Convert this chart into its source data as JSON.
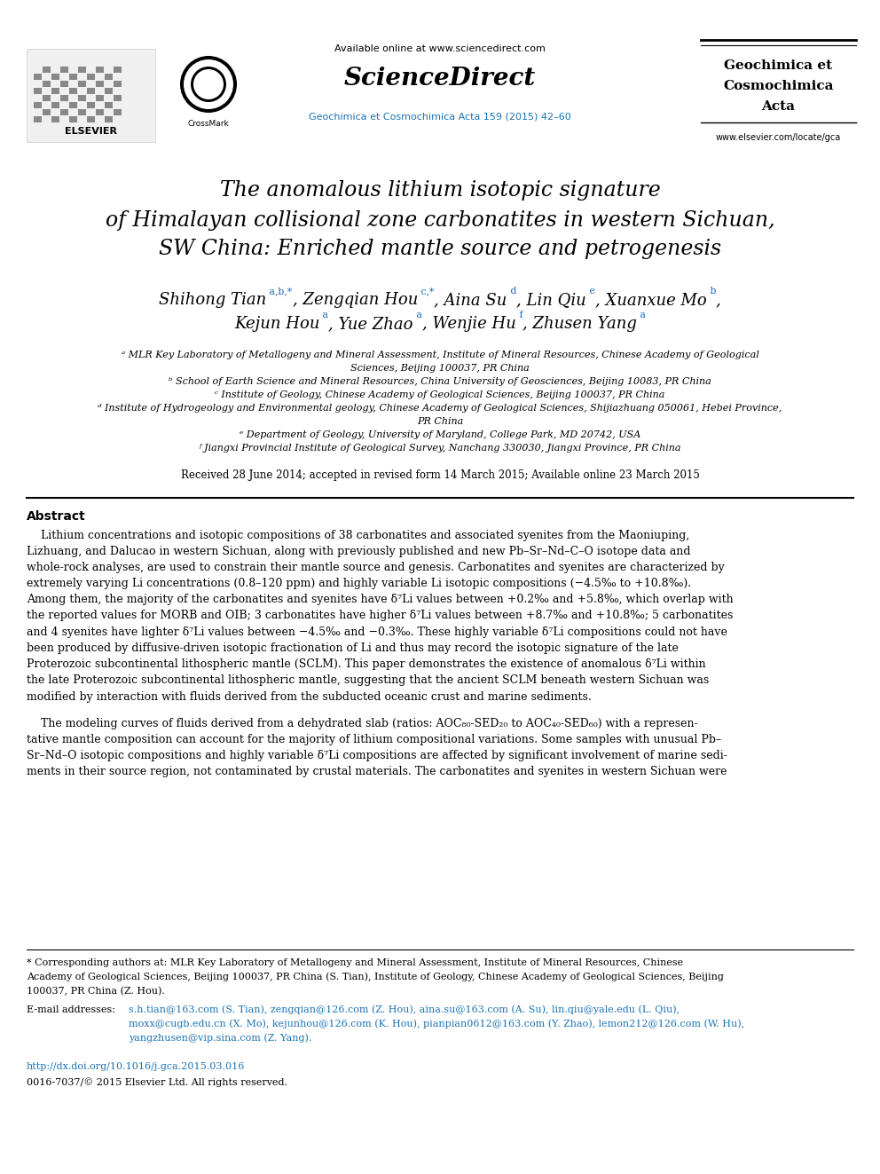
{
  "bg_color": "#ffffff",
  "page_width": 9.92,
  "page_height": 13.23,
  "header": {
    "available_online": "Available online at www.sciencedirect.com",
    "sciencedirect": "ScienceDirect",
    "journal_link": "Geochimica et Cosmochimica Acta 159 (2015) 42–60",
    "journal_name_line1": "Geochimica et",
    "journal_name_line2": "Cosmochimica",
    "journal_name_line3": "Acta",
    "website": "www.elsevier.com/locate/gca"
  },
  "title_line1": "The anomalous lithium isotopic signature",
  "title_line2": "of Himalayan collisional zone carbonatites in western Sichuan,",
  "title_line3": "SW China: Enriched mantle source and petrogenesis",
  "author_line1": "Shihong Tian",
  "author_line1_sups": "a,b,*",
  "author_seps1": ", Zengqian Hou",
  "author_seps1_sups": "c,*",
  "author_seps1b": ", Aina Su",
  "author_seps1b_sups": "d",
  "author_seps1c": ", Lin Qiu",
  "author_seps1c_sups": "e",
  "author_seps1d": ", Xuanxue Mo",
  "author_seps1d_sups": "b",
  "author_seps1e": ",",
  "author_line2a": "Kejun Hou",
  "author_line2a_sups": "a",
  "author_line2b": ", Yue Zhao",
  "author_line2b_sups": "a",
  "author_line2c": ", Wenjie Hu",
  "author_line2c_sups": "f",
  "author_line2d": ", Zhusen Yang",
  "author_line2d_sups": "a",
  "affiliations": [
    "a MLR Key Laboratory of Metallogeny and Mineral Assessment, Institute of Mineral Resources, Chinese Academy of Geological",
    "Sciences, Beijing 100037, PR China",
    "b School of Earth Science and Mineral Resources, China University of Geosciences, Beijing 10083, PR China",
    "c Institute of Geology, Chinese Academy of Geological Sciences, Beijing 100037, PR China",
    "d Institute of Hydrogeology and Environmental geology, Chinese Academy of Geological Sciences, Shijiazhuang 050061, Hebei Province,",
    "PR China",
    "e Department of Geology, University of Maryland, College Park, MD 20742, USA",
    "f Jiangxi Provincial Institute of Geological Survey, Nanchang 330030, Jiangxi Province, PR China"
  ],
  "received": "Received 28 June 2014; accepted in revised form 14 March 2015; Available online 23 March 2015",
  "abstract_title": "Abstract",
  "abstract_p1_lines": [
    "    Lithium concentrations and isotopic compositions of 38 carbonatites and associated syenites from the Maoniuping,",
    "Lizhuang, and Dalucao in western Sichuan, along with previously published and new Pb–Sr–Nd–C–O isotope data and",
    "whole-rock analyses, are used to constrain their mantle source and genesis. Carbonatites and syenites are characterized by",
    "extremely varying Li concentrations (0.8–120 ppm) and highly variable Li isotopic compositions (−4.5‰ to +10.8‰).",
    "Among them, the majority of the carbonatites and syenites have δ⁷Li values between +0.2‰ and +5.8‰, which overlap with",
    "the reported values for MORB and OIB; 3 carbonatites have higher δ⁷Li values between +8.7‰ and +10.8‰; 5 carbonatites",
    "and 4 syenites have lighter δ⁷Li values between −4.5‰ and −0.3‰. These highly variable δ⁷Li compositions could not have",
    "been produced by diffusive-driven isotopic fractionation of Li and thus may record the isotopic signature of the late",
    "Proterozoic subcontinental lithospheric mantle (SCLM). This paper demonstrates the existence of anomalous δ⁷Li within",
    "the late Proterozoic subcontinental lithospheric mantle, suggesting that the ancient SCLM beneath western Sichuan was",
    "modified by interaction with fluids derived from the subducted oceanic crust and marine sediments."
  ],
  "abstract_p2_lines": [
    "    The modeling curves of fluids derived from a dehydrated slab (ratios: AOC₈₀-SED₂₀ to AOC₄₀-SED₆₀) with a represen-",
    "tative mantle composition can account for the majority of lithium compositional variations. Some samples with unusual Pb–",
    "Sr–Nd–O isotopic compositions and highly variable δ⁷Li compositions are affected by significant involvement of marine sedi-",
    "ments in their source region, not contaminated by crustal materials. The carbonatites and syenites in western Sichuan were"
  ],
  "footnote_lines": [
    "* Corresponding authors at: MLR Key Laboratory of Metallogeny and Mineral Assessment, Institute of Mineral Resources, Chinese",
    "Academy of Geological Sciences, Beijing 100037, PR China (S. Tian), Institute of Geology, Chinese Academy of Geological Sciences, Beijing",
    "100037, PR China (Z. Hou)."
  ],
  "email_label": "E-mail addresses:",
  "email_lines": [
    "s.h.tian@163.com (S. Tian), zengqian@126.com (Z. Hou), aina.su@163.com (A. Su), lin.qiu@yale.edu (L. Qiu),",
    "moxx@cugb.edu.cn (X. Mo), kejunhou@126.com (K. Hou), pianpian0612@163.com (Y. Zhao), lemon212@126.com (W. Hu),",
    "yangzhusen@vip.sina.com (Z. Yang)."
  ],
  "doi": "http://dx.doi.org/10.1016/j.gca.2015.03.016",
  "copyright": "0016-7037/© 2015 Elsevier Ltd. All rights reserved.",
  "blue_color": "#1565c0",
  "link_color": "#1a73b5"
}
